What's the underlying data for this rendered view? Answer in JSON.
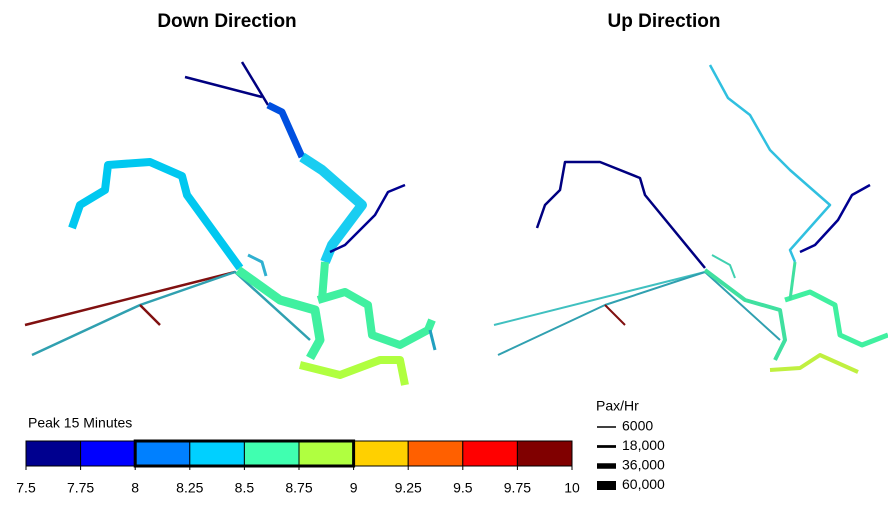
{
  "panels": [
    {
      "title": "Down Direction"
    },
    {
      "title": "Up Direction"
    }
  ],
  "color_legend": {
    "title": "Peak 15 Minutes",
    "ticks": [
      7.5,
      7.75,
      8,
      8.25,
      8.5,
      8.75,
      9,
      9.25,
      9.5,
      9.75,
      10
    ],
    "colors": [
      "#00008f",
      "#0000ff",
      "#0080ff",
      "#00d0ff",
      "#40ffb0",
      "#b0ff40",
      "#ffd000",
      "#ff6000",
      "#ff0000",
      "#800000"
    ]
  },
  "width_legend": {
    "title": "Pax/Hr",
    "entries": [
      6000,
      {
        "value": 18000,
        "label": "18,000"
      },
      {
        "value": 36000,
        "label": "36,000"
      },
      {
        "value": 60000,
        "label": "60,000"
      }
    ]
  }
}
